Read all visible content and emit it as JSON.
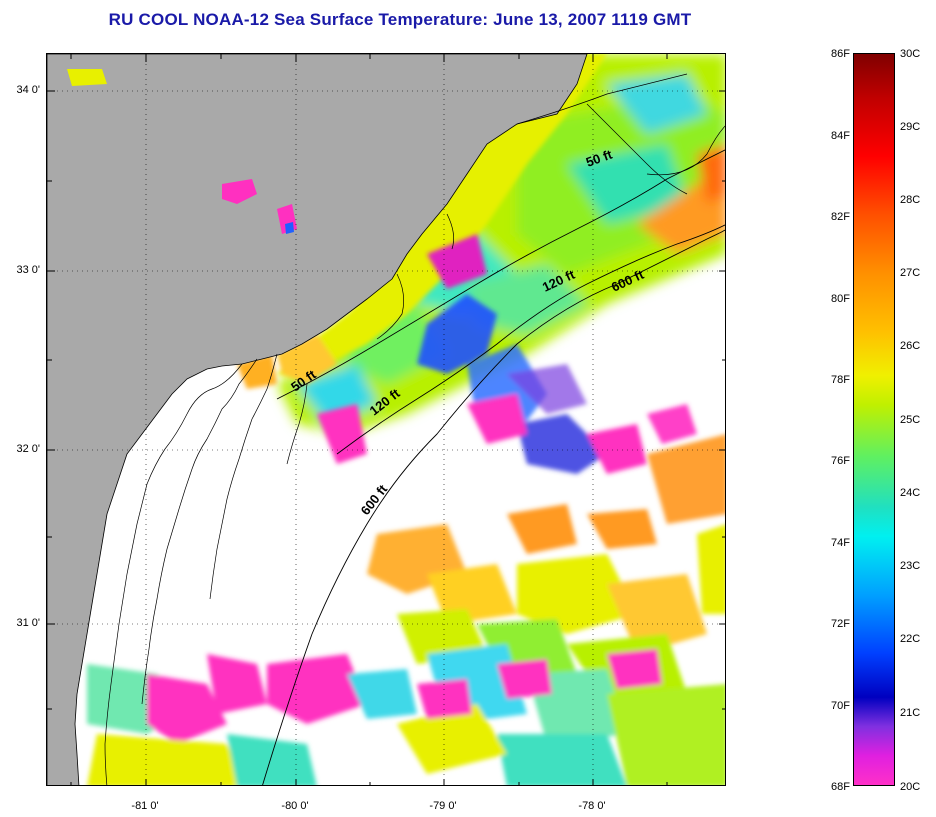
{
  "title": "RU COOL  NOAA-12  Sea Surface Temperature:  June 13, 2007 1119 GMT",
  "lat_labels": [
    "34 0'",
    "33 0'",
    "32 0'",
    "31 0'"
  ],
  "lon_labels": [
    "-81 0'",
    "-80 0'",
    "-79 0'",
    "-78 0'"
  ],
  "contour_labels": [
    "50 ft",
    "120 ft",
    "600 ft",
    "50 ft",
    "120 ft",
    "600 ft"
  ],
  "colorbar": {
    "fahrenheit": [
      "86F",
      "84F",
      "82F",
      "80F",
      "78F",
      "76F",
      "74F",
      "72F",
      "70F",
      "68F"
    ],
    "celsius": [
      "30C",
      "29C",
      "28C",
      "27C",
      "26C",
      "25C",
      "24C",
      "23C",
      "22C",
      "21C",
      "20C"
    ]
  },
  "colors": {
    "land": "#a9a9a9",
    "cloud": "#ffffff",
    "title": "#1a1aa8"
  }
}
